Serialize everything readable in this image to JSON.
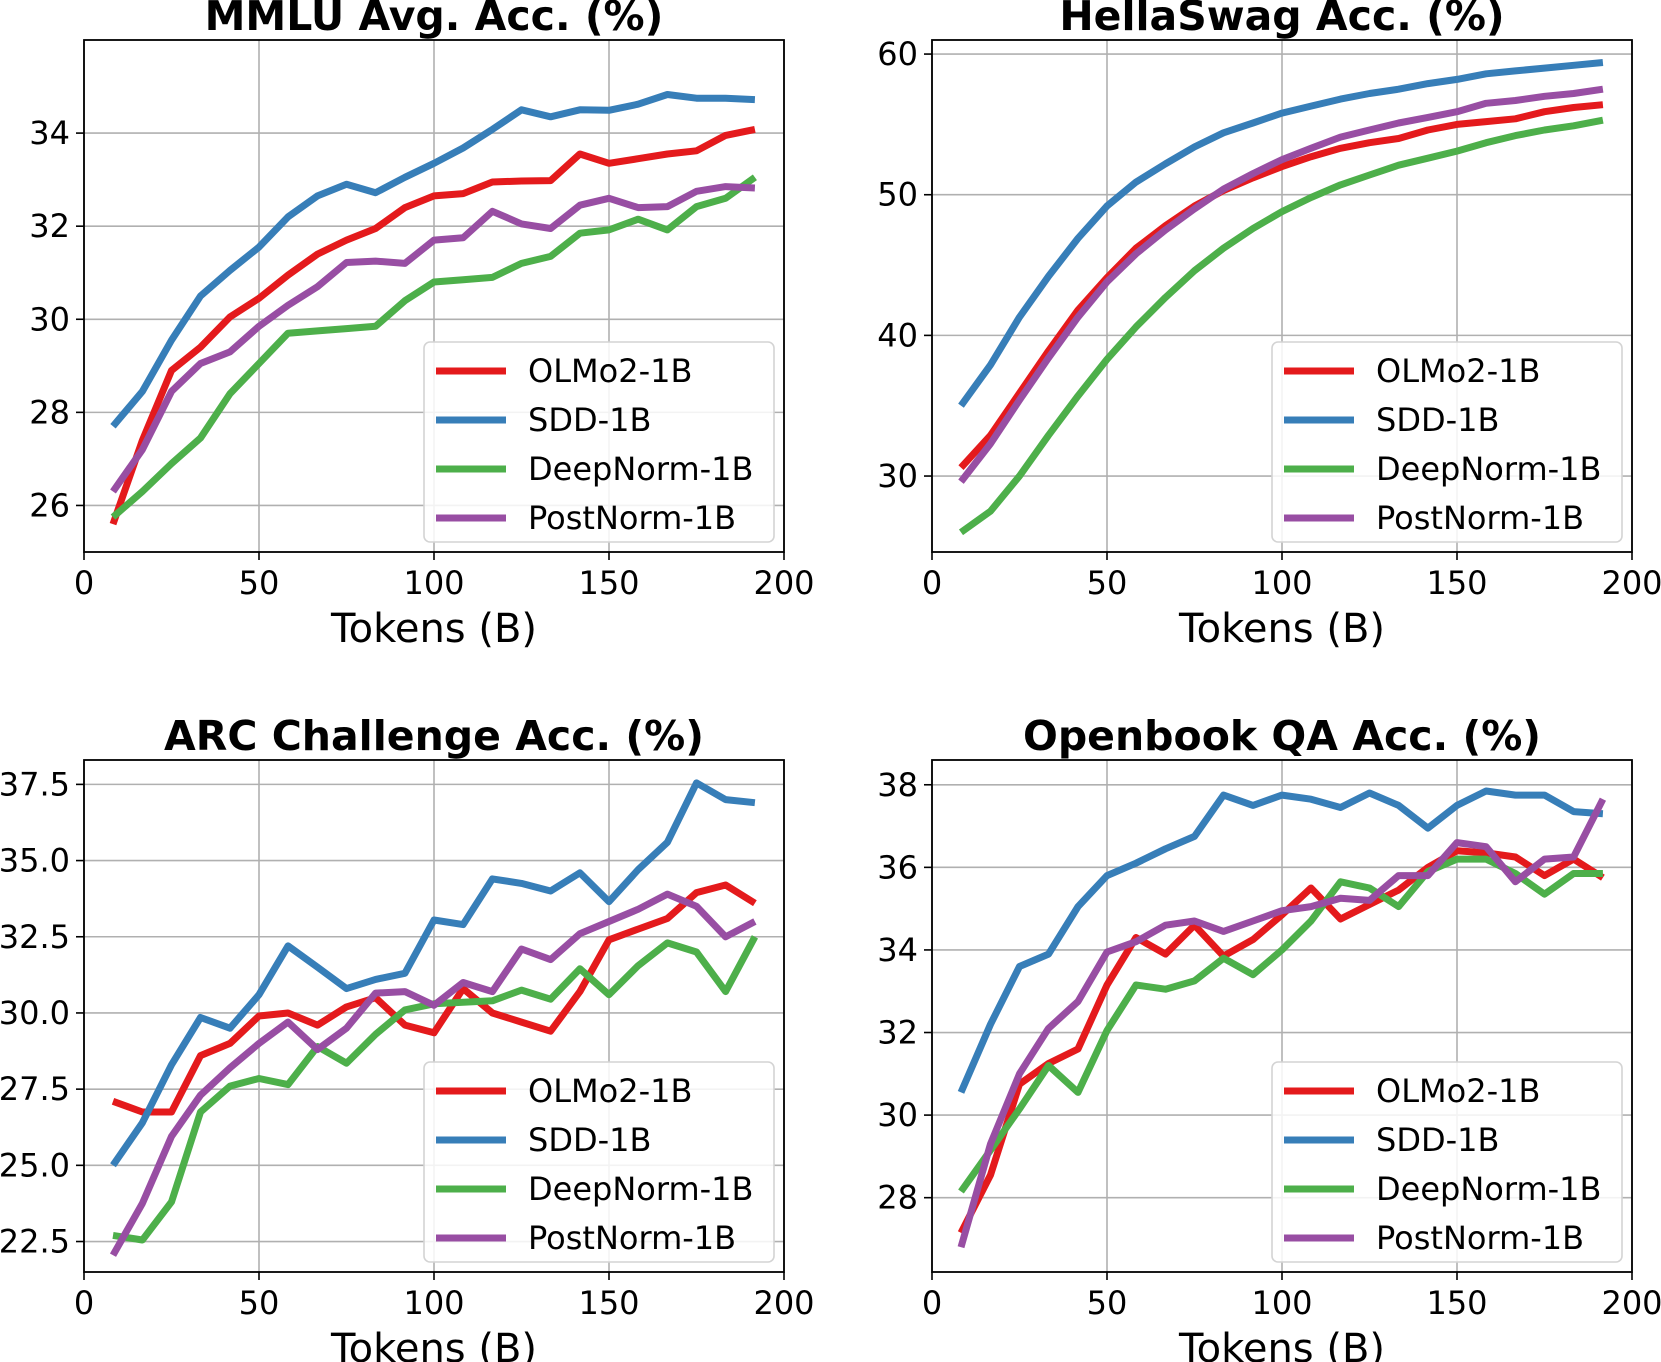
{
  "chart_data": [
    {
      "type": "line",
      "title": "MMLU Avg. Acc. (%)",
      "xlabel": "Tokens (B)",
      "ylabel": "",
      "xlim": [
        0,
        200
      ],
      "ylim": [
        25,
        36
      ],
      "xticks": [
        0,
        50,
        100,
        150,
        200
      ],
      "yticks": [
        26,
        28,
        30,
        32,
        34
      ],
      "ytick_labels": [
        "26",
        "28",
        "30",
        "32",
        "34"
      ],
      "grid": true,
      "legend_position": "lower-right",
      "x": [
        8.3,
        16.7,
        25,
        33.3,
        41.7,
        50,
        58.3,
        66.7,
        75,
        83.3,
        91.7,
        100,
        108.3,
        116.7,
        125,
        133.3,
        141.7,
        150,
        158.3,
        166.7,
        175,
        183.3,
        191.7
      ],
      "series": [
        {
          "name": "OLMo2-1B",
          "color": "#e41a1c",
          "values": [
            25.6,
            27.4,
            28.9,
            29.4,
            30.05,
            30.45,
            30.95,
            31.4,
            31.7,
            31.95,
            32.4,
            32.65,
            32.7,
            32.95,
            32.97,
            32.98,
            33.55,
            33.35,
            33.45,
            33.55,
            33.62,
            33.95,
            34.08
          ]
        },
        {
          "name": "SDD-1B",
          "color": "#377eb8",
          "values": [
            27.7,
            28.45,
            29.55,
            30.5,
            31.05,
            31.55,
            32.2,
            32.65,
            32.9,
            32.72,
            33.05,
            33.35,
            33.68,
            34.08,
            34.5,
            34.35,
            34.5,
            34.49,
            34.62,
            34.83,
            34.75,
            34.75,
            34.72
          ]
        },
        {
          "name": "DeepNorm-1B",
          "color": "#4daf4a",
          "values": [
            25.75,
            26.3,
            26.9,
            27.45,
            28.4,
            29.05,
            29.7,
            29.75,
            29.8,
            29.85,
            30.4,
            30.8,
            30.85,
            30.9,
            31.2,
            31.35,
            31.85,
            31.92,
            32.15,
            31.92,
            32.42,
            32.6,
            33.05
          ]
        },
        {
          "name": "PostNorm-1B",
          "color": "#984ea3",
          "values": [
            26.3,
            27.2,
            28.45,
            29.05,
            29.3,
            29.85,
            30.3,
            30.7,
            31.22,
            31.25,
            31.2,
            31.7,
            31.75,
            32.32,
            32.05,
            31.95,
            32.45,
            32.6,
            32.4,
            32.42,
            32.75,
            32.85,
            32.82
          ]
        }
      ]
    },
    {
      "type": "line",
      "title": "HellaSwag Acc. (%)",
      "xlabel": "Tokens (B)",
      "ylabel": "",
      "xlim": [
        0,
        200
      ],
      "ylim": [
        24.6,
        61
      ],
      "xticks": [
        0,
        50,
        100,
        150,
        200
      ],
      "yticks": [
        30,
        40,
        50,
        60
      ],
      "ytick_labels": [
        "30",
        "40",
        "50",
        "60"
      ],
      "grid": true,
      "legend_position": "lower-right",
      "x": [
        8.3,
        16.7,
        25,
        33.3,
        41.7,
        50,
        58.3,
        66.7,
        75,
        83.3,
        91.7,
        100,
        108.3,
        116.7,
        125,
        133.3,
        141.7,
        150,
        158.3,
        166.7,
        175,
        183.3,
        191.7
      ],
      "series": [
        {
          "name": "OLMo2-1B",
          "color": "#e41a1c",
          "values": [
            30.6,
            32.9,
            35.9,
            38.9,
            41.8,
            44.1,
            46.2,
            47.8,
            49.2,
            50.3,
            51.2,
            52.0,
            52.7,
            53.3,
            53.7,
            54.0,
            54.6,
            55.0,
            55.2,
            55.4,
            55.9,
            56.2,
            56.4
          ]
        },
        {
          "name": "SDD-1B",
          "color": "#377eb8",
          "values": [
            35.0,
            37.9,
            41.3,
            44.2,
            46.9,
            49.2,
            50.9,
            52.2,
            53.4,
            54.4,
            55.1,
            55.8,
            56.3,
            56.8,
            57.2,
            57.5,
            57.9,
            58.2,
            58.6,
            58.8,
            59.0,
            59.2,
            59.4
          ]
        },
        {
          "name": "DeepNorm-1B",
          "color": "#4daf4a",
          "values": [
            26.0,
            27.5,
            30.0,
            32.9,
            35.7,
            38.3,
            40.6,
            42.7,
            44.6,
            46.2,
            47.6,
            48.8,
            49.8,
            50.7,
            51.4,
            52.1,
            52.6,
            53.1,
            53.7,
            54.2,
            54.6,
            54.9,
            55.3
          ]
        },
        {
          "name": "PostNorm-1B",
          "color": "#984ea3",
          "values": [
            29.6,
            32.3,
            35.4,
            38.4,
            41.3,
            43.8,
            45.8,
            47.5,
            49.0,
            50.4,
            51.5,
            52.5,
            53.3,
            54.1,
            54.6,
            55.1,
            55.5,
            55.9,
            56.5,
            56.7,
            57.0,
            57.2,
            57.5
          ]
        }
      ]
    },
    {
      "type": "line",
      "title": "ARC Challenge Acc. (%)",
      "xlabel": "Tokens (B)",
      "ylabel": "",
      "xlim": [
        0,
        200
      ],
      "ylim": [
        21.5,
        38.3
      ],
      "xticks": [
        0,
        50,
        100,
        150,
        200
      ],
      "yticks": [
        22.5,
        25,
        27.5,
        30,
        32.5,
        35,
        37.5
      ],
      "ytick_labels": [
        "22.5",
        "25.0",
        "27.5",
        "30.0",
        "32.5",
        "35.0",
        "37.5"
      ],
      "grid": true,
      "legend_position": "lower-right",
      "x": [
        8.3,
        16.7,
        25,
        33.3,
        41.7,
        50,
        58.3,
        66.7,
        75,
        83.3,
        91.7,
        100,
        108.3,
        116.7,
        125,
        133.3,
        141.7,
        150,
        158.3,
        166.7,
        175,
        183.3,
        191.7
      ],
      "series": [
        {
          "name": "OLMo2-1B",
          "color": "#e41a1c",
          "values": [
            27.1,
            26.75,
            26.75,
            28.6,
            29.0,
            29.9,
            30.0,
            29.6,
            30.2,
            30.5,
            29.6,
            29.35,
            30.8,
            30.0,
            29.7,
            29.4,
            30.7,
            32.4,
            32.75,
            33.1,
            33.95,
            34.2,
            33.6
          ]
        },
        {
          "name": "SDD-1B",
          "color": "#377eb8",
          "values": [
            25.0,
            26.4,
            28.3,
            29.85,
            29.5,
            30.6,
            32.2,
            31.5,
            30.8,
            31.1,
            31.3,
            33.05,
            32.9,
            34.4,
            34.25,
            34.0,
            34.6,
            33.65,
            34.7,
            35.6,
            37.55,
            37.0,
            36.9
          ]
        },
        {
          "name": "DeepNorm-1B",
          "color": "#4daf4a",
          "values": [
            22.7,
            22.55,
            23.8,
            26.75,
            27.6,
            27.85,
            27.65,
            28.9,
            28.35,
            29.3,
            30.1,
            30.3,
            30.35,
            30.4,
            30.75,
            30.45,
            31.45,
            30.6,
            31.55,
            32.3,
            32.0,
            30.7,
            32.5
          ]
        },
        {
          "name": "PostNorm-1B",
          "color": "#984ea3",
          "values": [
            22.05,
            23.75,
            25.95,
            27.3,
            28.2,
            29.0,
            29.7,
            28.8,
            29.5,
            30.65,
            30.7,
            30.25,
            31.0,
            30.7,
            32.1,
            31.75,
            32.6,
            33.0,
            33.4,
            33.9,
            33.5,
            32.5,
            33.0
          ]
        }
      ]
    },
    {
      "type": "line",
      "title": "Openbook QA Acc. (%)",
      "xlabel": "Tokens (B)",
      "ylabel": "",
      "xlim": [
        0,
        200
      ],
      "ylim": [
        26.2,
        38.6
      ],
      "xticks": [
        0,
        50,
        100,
        150,
        200
      ],
      "yticks": [
        28,
        30,
        32,
        34,
        36,
        38
      ],
      "ytick_labels": [
        "28",
        "30",
        "32",
        "34",
        "36",
        "38"
      ],
      "grid": true,
      "legend_position": "lower-right",
      "x": [
        8.3,
        16.7,
        25,
        33.3,
        41.7,
        50,
        58.3,
        66.7,
        75,
        83.3,
        91.7,
        100,
        108.3,
        116.7,
        125,
        133.3,
        141.7,
        150,
        158.3,
        166.7,
        175,
        183.3,
        191.7
      ],
      "series": [
        {
          "name": "OLMo2-1B",
          "color": "#e41a1c",
          "values": [
            27.15,
            28.55,
            30.75,
            31.25,
            31.6,
            33.15,
            34.3,
            33.9,
            34.6,
            33.85,
            34.25,
            34.85,
            35.5,
            34.75,
            35.1,
            35.45,
            36.0,
            36.4,
            36.35,
            36.25,
            35.8,
            36.2,
            35.75
          ]
        },
        {
          "name": "SDD-1B",
          "color": "#377eb8",
          "values": [
            30.55,
            32.2,
            33.6,
            33.9,
            35.05,
            35.8,
            36.1,
            36.45,
            36.75,
            37.75,
            37.5,
            37.75,
            37.65,
            37.45,
            37.8,
            37.5,
            36.95,
            37.5,
            37.85,
            37.75,
            37.75,
            37.35,
            37.3
          ]
        },
        {
          "name": "DeepNorm-1B",
          "color": "#4daf4a",
          "values": [
            28.15,
            29.15,
            30.15,
            31.2,
            30.55,
            32.05,
            33.15,
            33.05,
            33.25,
            33.8,
            33.4,
            34.0,
            34.7,
            35.65,
            35.5,
            35.05,
            35.9,
            36.2,
            36.2,
            35.85,
            35.35,
            35.85,
            35.85
          ]
        },
        {
          "name": "PostNorm-1B",
          "color": "#984ea3",
          "values": [
            26.8,
            29.3,
            31.0,
            32.1,
            32.75,
            33.95,
            34.2,
            34.6,
            34.7,
            34.45,
            34.7,
            34.95,
            35.05,
            35.25,
            35.2,
            35.8,
            35.8,
            36.6,
            36.5,
            35.65,
            36.2,
            36.25,
            37.65
          ]
        }
      ]
    }
  ]
}
